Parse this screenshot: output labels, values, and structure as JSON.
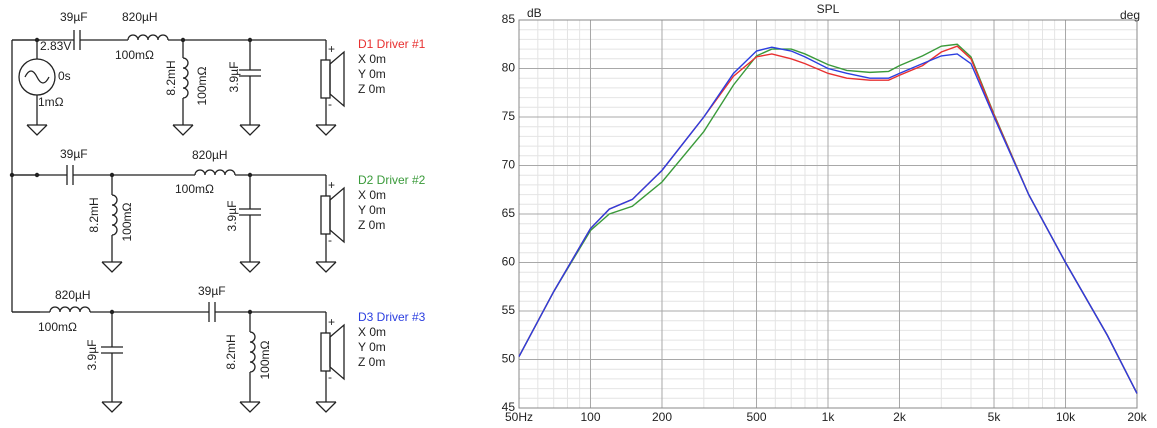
{
  "chart_data": {
    "type": "line",
    "title": "SPL",
    "y_label": "dB",
    "y2_label": "deg",
    "log_x": true,
    "grid": true,
    "x": [
      50,
      70,
      100,
      120,
      150,
      200,
      300,
      400,
      500,
      580,
      700,
      800,
      1000,
      1200,
      1500,
      1800,
      2000,
      2500,
      3000,
      3500,
      4000,
      5000,
      7000,
      10000,
      15000,
      20000
    ],
    "series": [
      {
        "color": "#3a9a3a",
        "values": [
          50.3,
          57,
          63.3,
          65,
          65.8,
          68.3,
          73.5,
          78.3,
          81.3,
          82,
          82,
          81.5,
          80.4,
          79.8,
          79.6,
          79.7,
          80.3,
          81.3,
          82.3,
          82.5,
          81.2,
          75.3,
          67,
          60,
          52.5,
          46.5
        ]
      },
      {
        "color": "#e83030",
        "values": [
          50.3,
          57,
          63.5,
          65.5,
          66.5,
          69.5,
          75,
          79.2,
          81.2,
          81.5,
          81,
          80.5,
          79.5,
          79,
          78.8,
          78.8,
          79.3,
          80.3,
          81.7,
          82.3,
          81,
          75.2,
          67,
          60,
          52.5,
          46.5
        ]
      },
      {
        "color": "#2b3ee0",
        "values": [
          50.3,
          57,
          63.5,
          65.5,
          66.5,
          69.5,
          75,
          79.5,
          81.8,
          82.2,
          81.8,
          81.2,
          80,
          79.5,
          79,
          79,
          79.5,
          80.5,
          81.3,
          81.5,
          80.5,
          75,
          67,
          60,
          52.5,
          46.5
        ]
      }
    ],
    "xlim": [
      50,
      20000
    ],
    "xticks": [
      {
        "value": 50,
        "label": "50Hz"
      },
      100,
      200,
      500,
      {
        "value": 1000,
        "label": "1k"
      },
      {
        "value": 2000,
        "label": "2k"
      },
      {
        "value": 5000,
        "label": "5k"
      },
      {
        "value": 10000,
        "label": "10k"
      },
      {
        "value": 20000,
        "label": "20k"
      }
    ],
    "x_minor_ticks": [
      60,
      70,
      80,
      90,
      300,
      400,
      600,
      700,
      800,
      900,
      3000,
      4000,
      6000,
      7000,
      8000,
      9000
    ],
    "ylim": [
      45,
      85
    ],
    "yticks": [
      45,
      50,
      55,
      60,
      65,
      70,
      75,
      80,
      85
    ],
    "y_minor_ticks": [
      46,
      47,
      48,
      49,
      51,
      52,
      53,
      54,
      56,
      57,
      58,
      59,
      61,
      62,
      63,
      64,
      66,
      67,
      68,
      69,
      71,
      72,
      73,
      74,
      76,
      77,
      78,
      79,
      81,
      82,
      83,
      84
    ]
  },
  "schematic": {
    "source": {
      "voltage": "2.83V",
      "delay": "0s",
      "resistance": "1mΩ"
    },
    "polarity": [
      "+",
      "-"
    ],
    "branches": [
      {
        "capacitor": "39µF",
        "inductor": "820µH",
        "inductor_r": "100mΩ",
        "shunt_inductor": "8.2mH",
        "shunt_inductor_r": "100mΩ",
        "shunt_capacitor": "3.9µF",
        "driver": "D1 Driver #1",
        "position": [
          "X 0m",
          "Y 0m",
          "Z 0m"
        ]
      },
      {
        "capacitor": "39µF",
        "inductor": "820µH",
        "inductor_r": "100mΩ",
        "shunt_inductor": "8.2mH",
        "shunt_inductor_r": "100mΩ",
        "shunt_capacitor": "3.9µF",
        "driver": "D2 Driver #2",
        "position": [
          "X 0m",
          "Y 0m",
          "Z 0m"
        ]
      },
      {
        "capacitor": "39µF",
        "inductor": "820µH",
        "inductor_r": "100mΩ",
        "shunt_inductor": "8.2mH",
        "shunt_inductor_r": "100mΩ",
        "shunt_capacitor": "3.9µF",
        "driver": "D3 Driver #3",
        "position": [
          "X 0m",
          "Y 0m",
          "Z 0m"
        ]
      }
    ]
  }
}
